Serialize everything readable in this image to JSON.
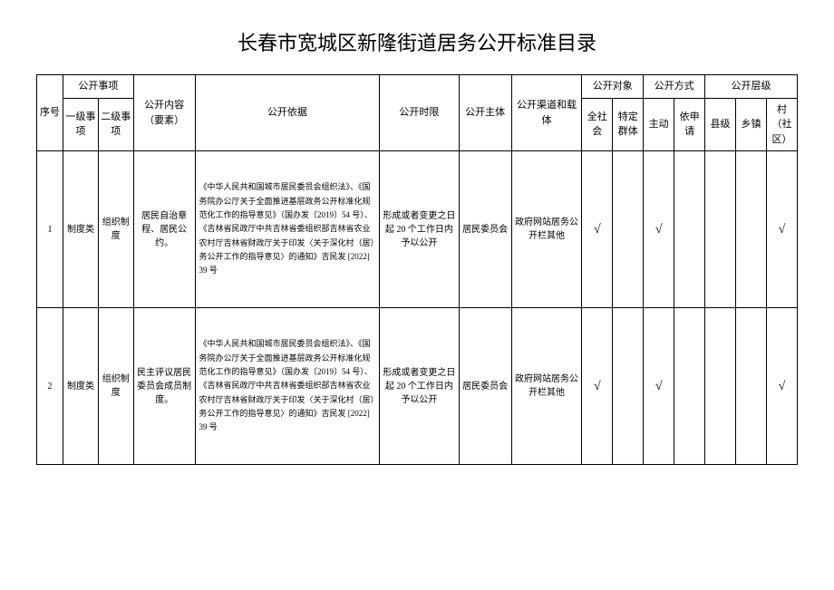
{
  "title": "长春市宽城区新隆街道居务公开标准目录",
  "headers": {
    "seq": "序号",
    "public_item": "公开事项",
    "cat1": "一级事项",
    "cat2": "二级事项",
    "content": "公开内容（要素）",
    "basis": "公开依据",
    "time": "公开时限",
    "subject": "公开主体",
    "channel": "公开渠道和载体",
    "target": "公开对象",
    "all_society": "全社会",
    "group": "特定群体",
    "method": "公开方式",
    "active": "主动",
    "request": "依申请",
    "level": "公开层级",
    "county": "县级",
    "town": "乡镇",
    "village": "村（社区）"
  },
  "rows": [
    {
      "seq": "1",
      "cat1": "制度类",
      "cat2": "组织制度",
      "content": "居民自治章程、居民公约。",
      "basis": "《中华人民共和国城市居民委员会组织法》、《国务院办公厅关于全面推进基层政务公开标准化规范化工作的指导意见》（国办发〔2019〕54 号）、《吉林省民政厅中共吉林省委组织部吉林省农业农村厅吉林省财政厅关于印发〈关于深化村（居）务公开工作的指导意见〉的通知》吉民发 [2022] 39 号",
      "time": "形成或者变更之日起 20 个工作日内予以公开",
      "subject": "居民委员会",
      "channel": "政府网站居务公开栏其他",
      "all": "√",
      "group": "",
      "active": "√",
      "request": "",
      "county": "",
      "town": "",
      "village": "√"
    },
    {
      "seq": "2",
      "cat1": "制度类",
      "cat2": "组织制度",
      "content": "民主评议居民委员会成员制度。",
      "basis": "《中华人民共和国城市居民委员会组织法》、《国务院办公厅关于全面推进基层政务公开标准化规范化工作的指导意见》（国办发〔2019〕54 号）、《吉林省民政厅中共吉林省委组织部吉林省农业农村厅吉林省财政厅关于印发〈关于深化村（居）务公开工作的指导意见〉的通知》吉民发 [2022] 39 号",
      "time": "形成或者变更之日起 20 个工作日内予以公开",
      "subject": "居民委员会",
      "channel": "政府网站居务公开栏其他",
      "all": "√",
      "group": "",
      "active": "√",
      "request": "",
      "county": "",
      "town": "",
      "village": "√"
    }
  ]
}
